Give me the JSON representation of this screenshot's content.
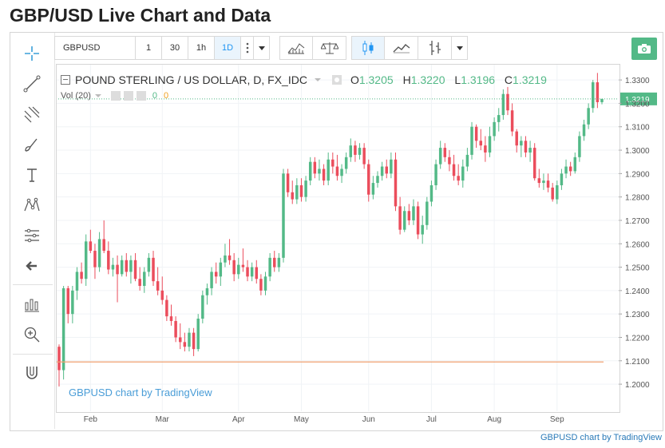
{
  "page": {
    "title": "GBP/USD Live Chart and Data",
    "footer_link": "GBPUSD chart by TradingView"
  },
  "toolbar": {
    "symbol": "GBPUSD",
    "timeframes": [
      "1",
      "30",
      "1h",
      "1D"
    ],
    "active_timeframe": "1D",
    "icons": [
      "more-icon",
      "caret-icon",
      "indicators-icon",
      "compare-icon",
      "candles-icon",
      "line-chart-icon",
      "bars-icon",
      "caret-icon",
      "camera-icon"
    ]
  },
  "left_tools": [
    "crosshair-icon",
    "trend-line-icon",
    "fib-icon",
    "brush-icon",
    "text-icon",
    "pattern-icon",
    "measure-icon",
    "back-arrow-icon",
    "long-position-icon",
    "zoom-icon",
    "magnet-icon"
  ],
  "legend": {
    "name": "POUND STERLING / US DOLLAR, D, FX_IDC",
    "o_label": "O",
    "o": "1.3205",
    "h_label": "H",
    "h": "1.3220",
    "l_label": "L",
    "l": "1.3196",
    "c_label": "C",
    "c": "1.3219",
    "vol_label": "Vol (20)",
    "vol_a": "0",
    "vol_b": "0"
  },
  "watermark": "GBPUSD chart by TradingView",
  "chart_data": {
    "type": "candlestick",
    "title": "POUND STERLING / US DOLLAR, D, FX_IDC",
    "x_ticks": [
      "Feb",
      "Mar",
      "Apr",
      "May",
      "Jun",
      "Jul",
      "Aug",
      "Sep"
    ],
    "y_ticks": [
      "1.3300",
      "1.3200",
      "1.3100",
      "1.3000",
      "1.2900",
      "1.2800",
      "1.2700",
      "1.2600",
      "1.2500",
      "1.2400",
      "1.2300",
      "1.2200",
      "1.2100",
      "1.2000"
    ],
    "ylim": [
      1.1915,
      1.3355
    ],
    "last_price": "1.3219",
    "reference_line": 1.2095,
    "up_color": "#53b987",
    "down_color": "#eb4d5c",
    "ref_line_color": "#f0a070",
    "candles": [
      [
        1.216,
        1.217,
        1.199,
        1.206
      ],
      [
        1.206,
        1.242,
        1.202,
        1.241
      ],
      [
        1.241,
        1.242,
        1.226,
        1.23
      ],
      [
        1.23,
        1.242,
        1.226,
        1.24
      ],
      [
        1.24,
        1.25,
        1.236,
        1.248
      ],
      [
        1.248,
        1.252,
        1.243,
        1.245
      ],
      [
        1.245,
        1.264,
        1.242,
        1.261
      ],
      [
        1.261,
        1.266,
        1.256,
        1.257
      ],
      [
        1.257,
        1.26,
        1.245,
        1.25
      ],
      [
        1.25,
        1.265,
        1.248,
        1.262
      ],
      [
        1.262,
        1.27,
        1.256,
        1.257
      ],
      [
        1.257,
        1.261,
        1.247,
        1.249
      ],
      [
        1.249,
        1.254,
        1.246,
        1.251
      ],
      [
        1.251,
        1.255,
        1.235,
        1.247
      ],
      [
        1.247,
        1.255,
        1.246,
        1.253
      ],
      [
        1.253,
        1.256,
        1.246,
        1.248
      ],
      [
        1.248,
        1.255,
        1.243,
        1.253
      ],
      [
        1.253,
        1.256,
        1.244,
        1.245
      ],
      [
        1.245,
        1.25,
        1.24,
        1.242
      ],
      [
        1.242,
        1.25,
        1.239,
        1.248
      ],
      [
        1.248,
        1.256,
        1.246,
        1.254
      ],
      [
        1.254,
        1.257,
        1.242,
        1.244
      ],
      [
        1.244,
        1.25,
        1.238,
        1.24
      ],
      [
        1.24,
        1.246,
        1.234,
        1.236
      ],
      [
        1.236,
        1.238,
        1.227,
        1.229
      ],
      [
        1.229,
        1.234,
        1.225,
        1.227
      ],
      [
        1.227,
        1.229,
        1.218,
        1.22
      ],
      [
        1.22,
        1.226,
        1.215,
        1.218
      ],
      [
        1.218,
        1.222,
        1.214,
        1.216
      ],
      [
        1.216,
        1.224,
        1.214,
        1.222
      ],
      [
        1.222,
        1.224,
        1.212,
        1.215
      ],
      [
        1.215,
        1.23,
        1.214,
        1.228
      ],
      [
        1.228,
        1.24,
        1.226,
        1.238
      ],
      [
        1.238,
        1.243,
        1.234,
        1.241
      ],
      [
        1.241,
        1.25,
        1.238,
        1.248
      ],
      [
        1.248,
        1.252,
        1.243,
        1.246
      ],
      [
        1.246,
        1.254,
        1.242,
        1.252
      ],
      [
        1.252,
        1.26,
        1.25,
        1.255
      ],
      [
        1.255,
        1.262,
        1.251,
        1.253
      ],
      [
        1.253,
        1.256,
        1.244,
        1.247
      ],
      [
        1.247,
        1.254,
        1.245,
        1.251
      ],
      [
        1.251,
        1.258,
        1.248,
        1.25
      ],
      [
        1.25,
        1.253,
        1.244,
        1.246
      ],
      [
        1.246,
        1.252,
        1.244,
        1.25
      ],
      [
        1.25,
        1.253,
        1.243,
        1.245
      ],
      [
        1.245,
        1.247,
        1.238,
        1.24
      ],
      [
        1.24,
        1.248,
        1.238,
        1.246
      ],
      [
        1.246,
        1.256,
        1.244,
        1.254
      ],
      [
        1.254,
        1.257,
        1.248,
        1.25
      ],
      [
        1.25,
        1.256,
        1.248,
        1.254
      ],
      [
        1.254,
        1.292,
        1.252,
        1.29
      ],
      [
        1.29,
        1.292,
        1.28,
        1.282
      ],
      [
        1.282,
        1.287,
        1.277,
        1.279
      ],
      [
        1.279,
        1.288,
        1.277,
        1.285
      ],
      [
        1.285,
        1.288,
        1.278,
        1.28
      ],
      [
        1.28,
        1.289,
        1.278,
        1.287
      ],
      [
        1.287,
        1.297,
        1.285,
        1.295
      ],
      [
        1.295,
        1.297,
        1.288,
        1.29
      ],
      [
        1.29,
        1.296,
        1.287,
        1.292
      ],
      [
        1.292,
        1.294,
        1.285,
        1.287
      ],
      [
        1.287,
        1.299,
        1.285,
        1.296
      ],
      [
        1.296,
        1.299,
        1.29,
        1.293
      ],
      [
        1.293,
        1.298,
        1.287,
        1.289
      ],
      [
        1.289,
        1.294,
        1.286,
        1.292
      ],
      [
        1.292,
        1.299,
        1.29,
        1.297
      ],
      [
        1.297,
        1.305,
        1.295,
        1.302
      ],
      [
        1.302,
        1.304,
        1.295,
        1.298
      ],
      [
        1.298,
        1.303,
        1.296,
        1.301
      ],
      [
        1.301,
        1.303,
        1.292,
        1.294
      ],
      [
        1.294,
        1.296,
        1.278,
        1.281
      ],
      [
        1.281,
        1.289,
        1.279,
        1.286
      ],
      [
        1.286,
        1.291,
        1.284,
        1.289
      ],
      [
        1.289,
        1.295,
        1.287,
        1.293
      ],
      [
        1.293,
        1.296,
        1.288,
        1.29
      ],
      [
        1.29,
        1.299,
        1.288,
        1.296
      ],
      [
        1.296,
        1.299,
        1.274,
        1.276
      ],
      [
        1.276,
        1.28,
        1.264,
        1.266
      ],
      [
        1.266,
        1.276,
        1.265,
        1.274
      ],
      [
        1.274,
        1.277,
        1.268,
        1.27
      ],
      [
        1.27,
        1.279,
        1.268,
        1.276
      ],
      [
        1.276,
        1.278,
        1.262,
        1.264
      ],
      [
        1.264,
        1.272,
        1.26,
        1.268
      ],
      [
        1.268,
        1.28,
        1.266,
        1.278
      ],
      [
        1.278,
        1.287,
        1.276,
        1.285
      ],
      [
        1.285,
        1.296,
        1.283,
        1.294
      ],
      [
        1.294,
        1.304,
        1.292,
        1.301
      ],
      [
        1.301,
        1.303,
        1.295,
        1.297
      ],
      [
        1.297,
        1.3,
        1.291,
        1.294
      ],
      [
        1.294,
        1.298,
        1.287,
        1.289
      ],
      [
        1.289,
        1.294,
        1.285,
        1.287
      ],
      [
        1.287,
        1.296,
        1.284,
        1.293
      ],
      [
        1.293,
        1.301,
        1.291,
        1.298
      ],
      [
        1.298,
        1.312,
        1.296,
        1.31
      ],
      [
        1.31,
        1.311,
        1.301,
        1.304
      ],
      [
        1.304,
        1.309,
        1.3,
        1.302
      ],
      [
        1.302,
        1.306,
        1.295,
        1.299
      ],
      [
        1.299,
        1.31,
        1.297,
        1.306
      ],
      [
        1.306,
        1.314,
        1.304,
        1.312
      ],
      [
        1.312,
        1.318,
        1.308,
        1.315
      ],
      [
        1.315,
        1.326,
        1.313,
        1.324
      ],
      [
        1.324,
        1.327,
        1.315,
        1.317
      ],
      [
        1.317,
        1.32,
        1.306,
        1.308
      ],
      [
        1.308,
        1.309,
        1.299,
        1.302
      ],
      [
        1.302,
        1.306,
        1.297,
        1.304
      ],
      [
        1.304,
        1.306,
        1.297,
        1.299
      ],
      [
        1.299,
        1.304,
        1.295,
        1.301
      ],
      [
        1.301,
        1.303,
        1.287,
        1.288
      ],
      [
        1.288,
        1.292,
        1.284,
        1.286
      ],
      [
        1.286,
        1.29,
        1.283,
        1.287
      ],
      [
        1.287,
        1.29,
        1.282,
        1.284
      ],
      [
        1.284,
        1.286,
        1.278,
        1.279
      ],
      [
        1.279,
        1.287,
        1.277,
        1.285
      ],
      [
        1.285,
        1.292,
        1.283,
        1.29
      ],
      [
        1.29,
        1.296,
        1.288,
        1.293
      ],
      [
        1.293,
        1.295,
        1.289,
        1.291
      ],
      [
        1.291,
        1.299,
        1.29,
        1.297
      ],
      [
        1.297,
        1.308,
        1.295,
        1.306
      ],
      [
        1.306,
        1.313,
        1.304,
        1.311
      ],
      [
        1.311,
        1.32,
        1.309,
        1.318
      ],
      [
        1.318,
        1.33,
        1.316,
        1.329
      ],
      [
        1.329,
        1.333,
        1.318,
        1.3205
      ],
      [
        1.3205,
        1.322,
        1.3196,
        1.3219
      ]
    ]
  }
}
